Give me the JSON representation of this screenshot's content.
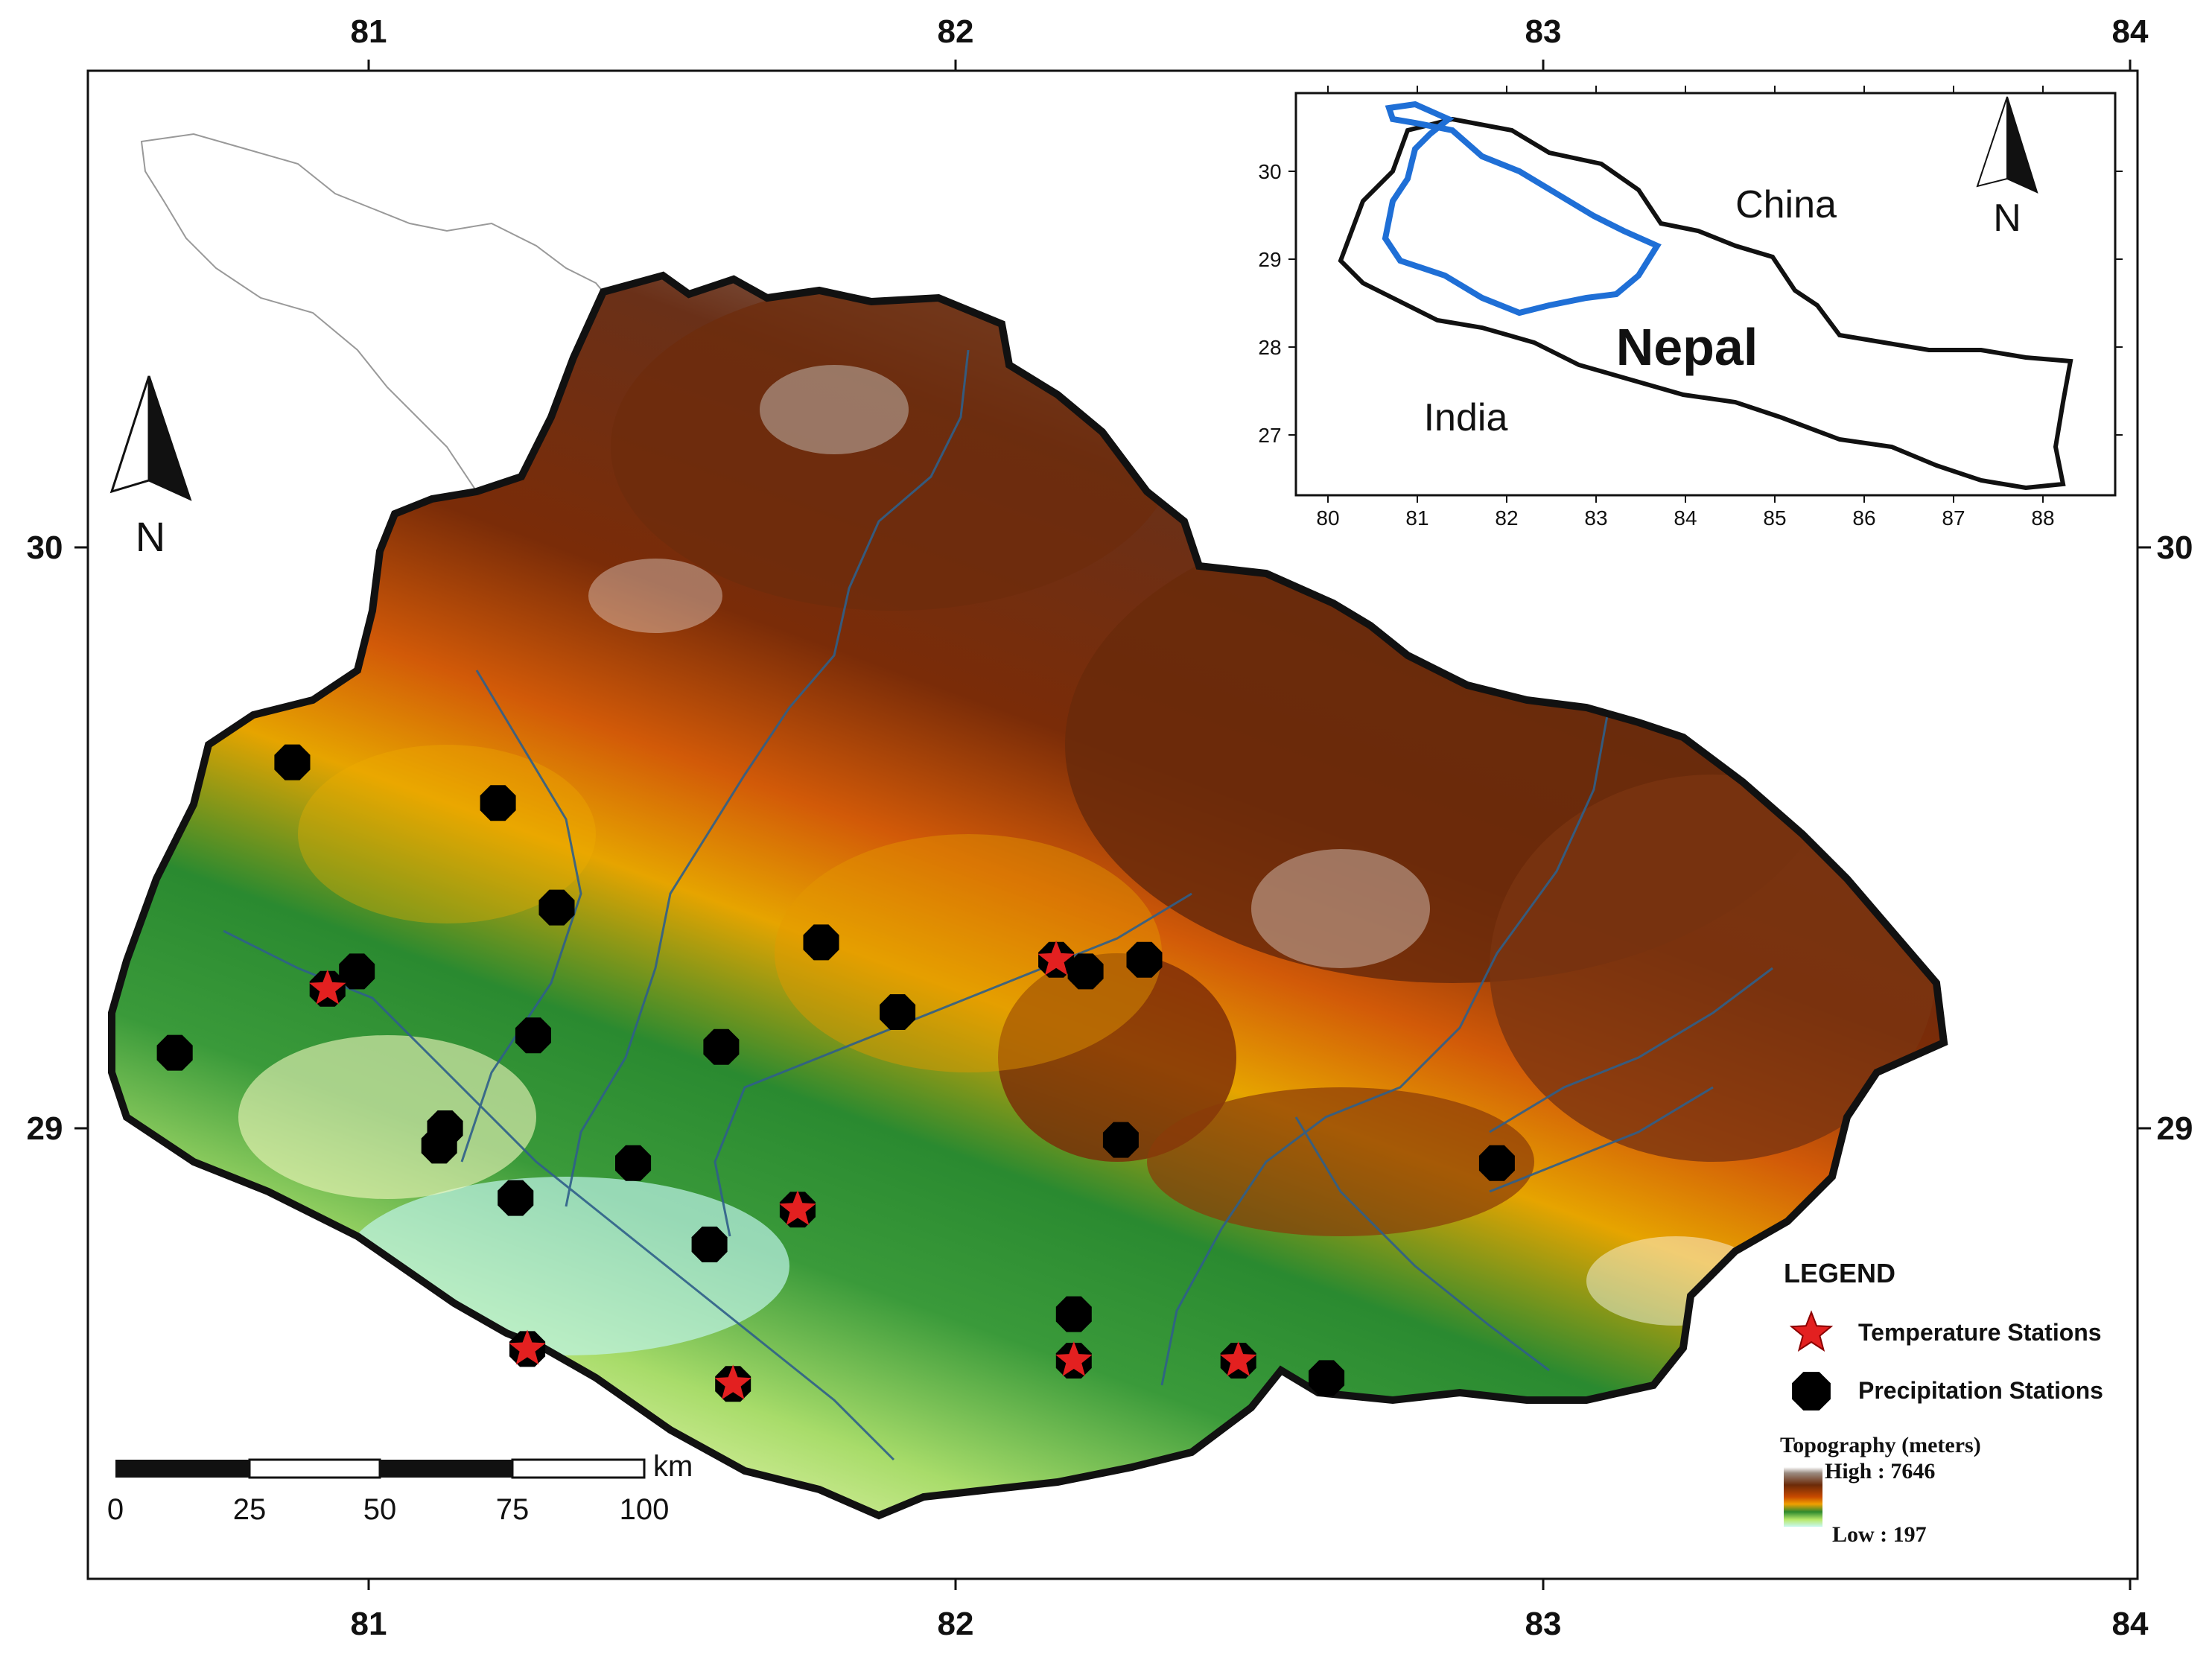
{
  "top_axis_labels": [
    "81",
    "82",
    "83",
    "84"
  ],
  "bottom_axis_labels": [
    "81",
    "82",
    "83",
    "84"
  ],
  "left_axis_labels": [
    "30",
    "29"
  ],
  "right_axis_labels": [
    "30",
    "29"
  ],
  "north_label": "N",
  "inset": {
    "x_labels": [
      "80",
      "81",
      "82",
      "83",
      "84",
      "85",
      "86",
      "87",
      "88"
    ],
    "y_labels": [
      "30",
      "29",
      "28",
      "27"
    ],
    "china_label": "China",
    "india_label": "India",
    "nepal_label": "Nepal",
    "north_label": "N",
    "basin_outline_color": "#1f6fd6"
  },
  "legend": {
    "title": "LEGEND",
    "temperature_label": "Temperature Stations",
    "precipitation_label": "Precipitation Stations",
    "topography_title": "Topography (meters)",
    "high_label": "High : 7646",
    "low_label": "Low : 197",
    "temperature_color": "#e32020",
    "precipitation_color": "#000000"
  },
  "scale_bar": {
    "unit": "km",
    "ticks": [
      "0",
      "25",
      "50",
      "75",
      "100"
    ]
  },
  "stations": {
    "precipitation": [
      {
        "lon": 80.87,
        "lat": 29.63
      },
      {
        "lon": 81.22,
        "lat": 29.56
      },
      {
        "lon": 81.32,
        "lat": 29.38
      },
      {
        "lon": 80.98,
        "lat": 29.27
      },
      {
        "lon": 80.67,
        "lat": 29.13
      },
      {
        "lon": 81.28,
        "lat": 29.16
      },
      {
        "lon": 81.13,
        "lat": 29.0
      },
      {
        "lon": 81.12,
        "lat": 28.97
      },
      {
        "lon": 81.25,
        "lat": 28.88
      },
      {
        "lon": 81.45,
        "lat": 28.94
      },
      {
        "lon": 81.6,
        "lat": 29.14
      },
      {
        "lon": 81.58,
        "lat": 28.8
      },
      {
        "lon": 81.77,
        "lat": 29.32
      },
      {
        "lon": 81.9,
        "lat": 29.2
      },
      {
        "lon": 82.22,
        "lat": 29.27
      },
      {
        "lon": 82.32,
        "lat": 29.29
      },
      {
        "lon": 82.28,
        "lat": 28.98
      },
      {
        "lon": 82.2,
        "lat": 28.68
      },
      {
        "lon": 82.63,
        "lat": 28.57
      },
      {
        "lon": 82.92,
        "lat": 28.94
      }
    ],
    "temperature": [
      {
        "lon": 80.93,
        "lat": 29.24
      },
      {
        "lon": 81.73,
        "lat": 28.86
      },
      {
        "lon": 81.27,
        "lat": 28.62
      },
      {
        "lon": 81.62,
        "lat": 28.56
      },
      {
        "lon": 82.17,
        "lat": 29.29
      },
      {
        "lon": 82.2,
        "lat": 28.6
      },
      {
        "lon": 82.48,
        "lat": 28.6
      }
    ]
  }
}
